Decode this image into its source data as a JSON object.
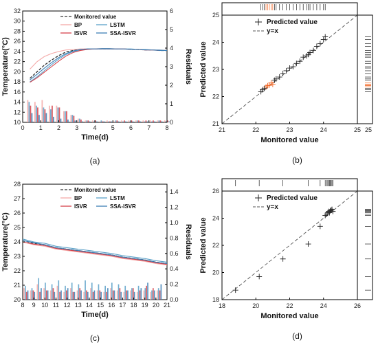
{
  "chart_data": [
    {
      "id": "a",
      "type": "line",
      "caption": "(a)",
      "xlabel": "Time(d)",
      "ylabel": "Temperature(°C)",
      "y2label": "Residuals",
      "xlim": [
        0,
        8
      ],
      "ylim": [
        10,
        32
      ],
      "y2lim": [
        0,
        6
      ],
      "xticks": [
        "0",
        "1",
        "2",
        "3",
        "4",
        "5",
        "6",
        "7",
        "8"
      ],
      "yticks": [
        "10",
        "12",
        "14",
        "16",
        "18",
        "20",
        "22",
        "24",
        "26",
        "28",
        "30",
        "32"
      ],
      "y2ticks": [
        "0",
        "1",
        "2",
        "3",
        "4",
        "5",
        "6"
      ],
      "legend": [
        "Monitored value",
        "BP",
        "LSTM",
        "ISVR",
        "SSA-ISVR"
      ],
      "colors": {
        "Monitored value": "#333333",
        "BP": "#f4a9a8",
        "LSTM": "#5aa0c8",
        "ISVR": "#d6424a",
        "SSA-ISVR": "#3d7fb5"
      },
      "x": [
        0.4,
        0.8,
        1.2,
        1.6,
        2.0,
        2.4,
        2.8,
        3.2,
        3.6,
        4.0,
        4.4,
        4.8,
        5.2,
        5.6,
        6.0,
        6.4,
        6.8,
        7.2,
        7.6,
        8.0
      ],
      "series": [
        {
          "name": "Monitored value",
          "values": [
            18.7,
            20.0,
            21.3,
            22.3,
            23.2,
            23.9,
            24.2,
            24.4,
            24.5,
            24.5,
            24.5,
            24.5,
            24.5,
            24.5,
            24.4,
            24.4,
            24.3,
            24.3,
            24.2,
            24.2
          ]
        },
        {
          "name": "BP",
          "values": [
            20.5,
            22.0,
            23.0,
            23.6,
            24.0,
            24.3,
            24.4,
            24.5,
            24.5,
            24.5,
            24.5,
            24.5,
            24.5,
            24.5,
            24.4,
            24.4,
            24.3,
            24.3,
            24.2,
            24.2
          ]
        },
        {
          "name": "LSTM",
          "values": [
            18.0,
            19.0,
            20.2,
            21.4,
            22.5,
            23.4,
            24.0,
            24.3,
            24.5,
            24.5,
            24.6,
            24.6,
            24.5,
            24.5,
            24.5,
            24.4,
            24.4,
            24.3,
            24.3,
            24.2
          ]
        },
        {
          "name": "ISVR",
          "values": [
            17.9,
            18.8,
            19.9,
            21.0,
            22.1,
            23.1,
            23.8,
            24.2,
            24.4,
            24.5,
            24.5,
            24.5,
            24.5,
            24.5,
            24.4,
            24.4,
            24.3,
            24.3,
            24.2,
            24.2
          ]
        },
        {
          "name": "SSA-ISVR",
          "values": [
            18.4,
            19.5,
            20.7,
            21.8,
            22.8,
            23.6,
            24.1,
            24.4,
            24.5,
            24.5,
            24.5,
            24.5,
            24.5,
            24.5,
            24.4,
            24.4,
            24.3,
            24.3,
            24.2,
            24.2
          ]
        }
      ],
      "residuals": {
        "x": [
          0.4,
          0.8,
          1.2,
          1.6,
          2.0,
          2.4,
          2.8,
          3.2,
          3.6,
          4.0,
          4.4,
          4.8,
          5.2,
          5.6,
          6.0,
          6.4,
          6.8,
          7.2,
          7.6,
          8.0
        ],
        "series": [
          {
            "name": "BP",
            "values": [
              1.2,
              1.1,
              1.2,
              0.9,
              0.9,
              0.6,
              0.4,
              0.2,
              0.1,
              0.1,
              0.05,
              0.1,
              0.05,
              0.1,
              0.1,
              0.1,
              0.1,
              0.1,
              0.1,
              0.1
            ]
          },
          {
            "name": "LSTM",
            "values": [
              1.1,
              0.9,
              0.8,
              0.7,
              0.8,
              0.6,
              0.4,
              0.2,
              0.1,
              0.05,
              0.1,
              0.05,
              0.1,
              0.05,
              0.05,
              0.1,
              0.05,
              0.05,
              0.1,
              0.05
            ]
          },
          {
            "name": "ISVR",
            "values": [
              0.9,
              0.8,
              0.7,
              0.9,
              0.8,
              0.6,
              0.35,
              0.15,
              0.1,
              0.1,
              0.05,
              0.05,
              0.1,
              0.1,
              0.1,
              0.1,
              0.1,
              0.1,
              0.1,
              0.1
            ]
          },
          {
            "name": "SSA-ISVR",
            "values": [
              0.5,
              0.4,
              0.5,
              0.3,
              0.2,
              0.15,
              0.1,
              0.05,
              0.05,
              0.05,
              0.05,
              0.05,
              0.05,
              0.05,
              0.05,
              0.05,
              0.05,
              0.05,
              0.05,
              0.05
            ]
          }
        ]
      }
    },
    {
      "id": "b",
      "type": "scatter",
      "caption": "(b)",
      "xlabel": "Monitored value",
      "ylabel": "Predicted value",
      "xlim": [
        21,
        25
      ],
      "ylim": [
        21,
        25
      ],
      "xticks": [
        "21",
        "22",
        "23",
        "24",
        "25"
      ],
      "yticks": [
        "21",
        "22",
        "23",
        "24",
        "25"
      ],
      "right_ticks": [
        "25"
      ],
      "legend": [
        "Predicted value",
        "y=x"
      ],
      "points": [
        [
          22.15,
          22.18
        ],
        [
          22.2,
          22.25
        ],
        [
          22.3,
          22.35
        ],
        [
          22.4,
          22.42
        ],
        [
          22.45,
          22.5
        ],
        [
          22.5,
          22.45
        ],
        [
          22.55,
          22.6
        ],
        [
          22.6,
          22.65
        ],
        [
          22.7,
          22.72
        ],
        [
          22.8,
          22.85
        ],
        [
          22.9,
          22.95
        ],
        [
          23.0,
          23.05
        ],
        [
          23.1,
          23.1
        ],
        [
          23.2,
          23.22
        ],
        [
          23.3,
          23.3
        ],
        [
          23.4,
          23.45
        ],
        [
          23.5,
          23.5
        ],
        [
          23.6,
          23.62
        ],
        [
          23.7,
          23.7
        ],
        [
          23.8,
          23.85
        ],
        [
          23.9,
          23.95
        ],
        [
          24.0,
          24.1
        ],
        [
          24.05,
          24.2
        ],
        [
          22.25,
          22.3
        ],
        [
          22.35,
          22.4
        ],
        [
          23.55,
          23.55
        ]
      ],
      "highlight_color": "#f26522"
    },
    {
      "id": "c",
      "type": "line",
      "caption": "(c)",
      "xlabel": "Time(d)",
      "ylabel": "Temperature(°C)",
      "y2label": "Residuals",
      "xlim": [
        8,
        21
      ],
      "ylim": [
        20,
        28
      ],
      "y2lim": [
        0,
        1.5
      ],
      "xticks": [
        "8",
        "9",
        "10",
        "11",
        "12",
        "13",
        "14",
        "15",
        "16",
        "17",
        "18",
        "19",
        "20",
        "21"
      ],
      "yticks": [
        "20",
        "21",
        "22",
        "23",
        "24",
        "25",
        "26",
        "27",
        "28"
      ],
      "y2ticks": [
        "0.0",
        "0.2",
        "0.4",
        "0.6",
        "0.8",
        "1.0",
        "1.2",
        "1.4"
      ],
      "legend": [
        "Monitored value",
        "BP",
        "LSTM",
        "ISVR",
        "SSA-ISVR"
      ],
      "colors": {
        "Monitored value": "#333333",
        "BP": "#f4a9a8",
        "LSTM": "#5aa0c8",
        "ISVR": "#d6424a",
        "SSA-ISVR": "#3d7fb5"
      },
      "x": [
        8,
        9,
        10,
        11,
        12,
        13,
        14,
        15,
        16,
        17,
        18,
        19,
        20,
        21
      ],
      "series": [
        {
          "name": "Monitored value",
          "values": [
            24.1,
            23.9,
            23.8,
            23.6,
            23.5,
            23.4,
            23.3,
            23.2,
            23.1,
            22.95,
            22.85,
            22.75,
            22.6,
            22.5
          ]
        },
        {
          "name": "BP",
          "values": [
            24.0,
            23.8,
            23.7,
            23.5,
            23.4,
            23.3,
            23.2,
            23.1,
            23.0,
            22.85,
            22.75,
            22.65,
            22.5,
            22.4
          ]
        },
        {
          "name": "LSTM",
          "values": [
            24.2,
            24.0,
            23.9,
            23.7,
            23.6,
            23.5,
            23.4,
            23.3,
            23.2,
            23.05,
            22.95,
            22.85,
            22.7,
            22.6
          ]
        },
        {
          "name": "ISVR",
          "values": [
            24.0,
            23.85,
            23.75,
            23.55,
            23.45,
            23.35,
            23.25,
            23.15,
            23.05,
            22.9,
            22.8,
            22.7,
            22.55,
            22.45
          ]
        },
        {
          "name": "SSA-ISVR",
          "values": [
            24.1,
            23.95,
            23.8,
            23.6,
            23.5,
            23.4,
            23.3,
            23.2,
            23.1,
            22.95,
            22.85,
            22.75,
            22.6,
            22.5
          ]
        }
      ],
      "residuals": {
        "x": [
          8.3,
          8.9,
          9.5,
          10.1,
          10.7,
          11.3,
          11.9,
          12.5,
          13.1,
          13.7,
          14.3,
          14.9,
          15.5,
          16.1,
          16.7,
          17.3,
          17.9,
          18.5,
          19.1,
          19.7,
          20.3
        ],
        "series": [
          {
            "name": "BP",
            "values": [
              0.15,
              0.12,
              0.2,
              0.15,
              0.12,
              0.18,
              0.1,
              0.15,
              0.12,
              0.1,
              0.15,
              0.12,
              0.1,
              0.15,
              0.12,
              0.1,
              0.12,
              0.1,
              0.12,
              0.1,
              0.12
            ]
          },
          {
            "name": "LSTM",
            "values": [
              0.18,
              0.15,
              0.28,
              0.22,
              0.2,
              0.25,
              0.18,
              0.22,
              0.2,
              0.25,
              0.22,
              0.2,
              0.18,
              0.22,
              0.2,
              0.18,
              0.15,
              0.18,
              0.15,
              0.12,
              0.15
            ]
          },
          {
            "name": "ISVR",
            "values": [
              0.1,
              0.12,
              0.1,
              0.12,
              0.15,
              0.1,
              0.12,
              0.1,
              0.15,
              0.12,
              0.1,
              0.12,
              0.1,
              0.12,
              0.15,
              0.12,
              0.15,
              0.12,
              0.18,
              0.15,
              0.12
            ]
          },
          {
            "name": "SSA-ISVR",
            "values": [
              0.12,
              0.1,
              0.15,
              0.12,
              0.1,
              0.12,
              0.15,
              0.1,
              0.12,
              0.1,
              0.12,
              0.1,
              0.15,
              0.12,
              0.1,
              0.12,
              0.1,
              0.15,
              0.22,
              0.12,
              0.2
            ]
          }
        ]
      }
    },
    {
      "id": "d",
      "type": "scatter",
      "caption": "(d)",
      "xlabel": "Monitored value",
      "ylabel": "Predicted value",
      "xlim": [
        18,
        26
      ],
      "ylim": [
        18,
        26
      ],
      "xticks": [
        "18",
        "20",
        "22",
        "24",
        "26"
      ],
      "yticks": [
        "18",
        "20",
        "22",
        "24",
        "26"
      ],
      "legend": [
        "Predicted value",
        "y=x"
      ],
      "points": [
        [
          18.8,
          18.7
        ],
        [
          20.2,
          19.7
        ],
        [
          21.6,
          21.0
        ],
        [
          23.1,
          22.1
        ],
        [
          23.8,
          23.4
        ],
        [
          24.1,
          24.2
        ],
        [
          24.2,
          24.3
        ],
        [
          24.25,
          24.4
        ],
        [
          24.3,
          24.5
        ],
        [
          24.35,
          24.4
        ],
        [
          24.4,
          24.55
        ],
        [
          24.45,
          24.6
        ],
        [
          24.5,
          24.65
        ],
        [
          24.55,
          24.5
        ]
      ]
    }
  ]
}
